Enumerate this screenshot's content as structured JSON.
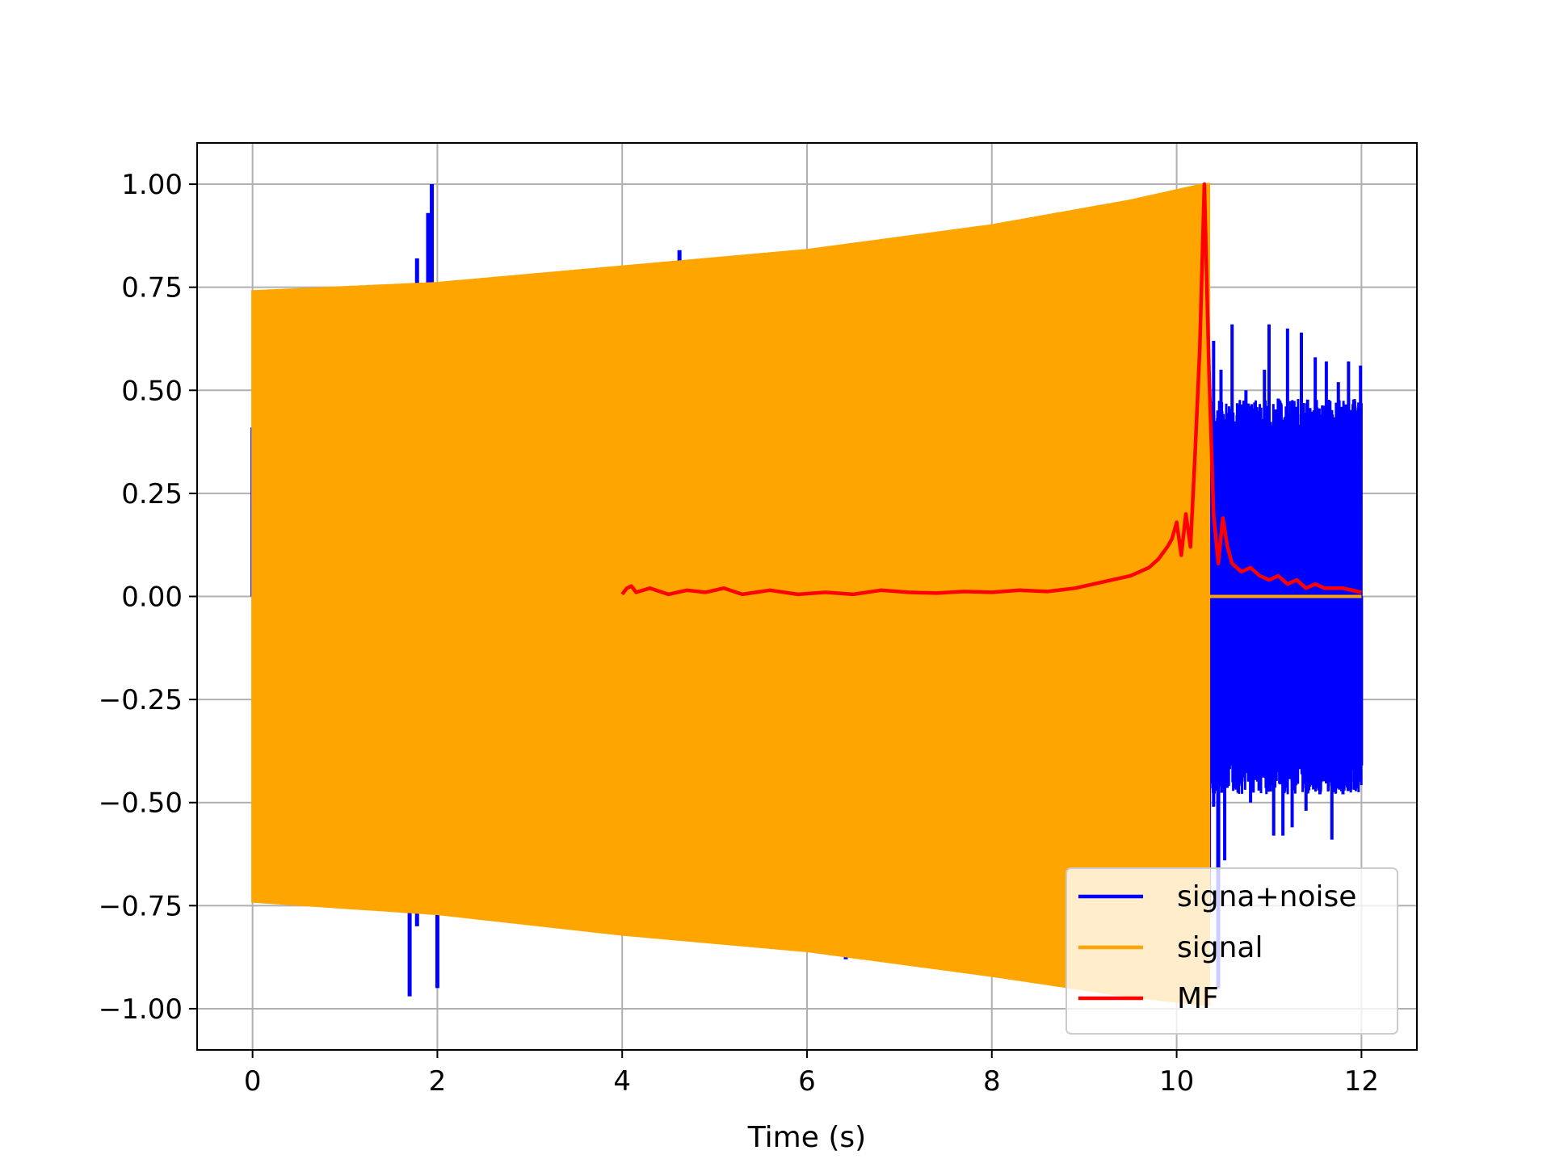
{
  "chart_data": {
    "type": "line",
    "title": "",
    "xlabel": "Time (s)",
    "ylabel": "",
    "xlim": [
      -0.6,
      12.6
    ],
    "ylim": [
      -1.1,
      1.1
    ],
    "x_ticks": [
      0,
      2,
      4,
      6,
      8,
      10,
      12
    ],
    "x_tick_labels": [
      "0",
      "2",
      "4",
      "6",
      "8",
      "10",
      "12"
    ],
    "y_ticks": [
      1.0,
      0.75,
      0.5,
      0.25,
      0.0,
      -0.25,
      -0.5,
      -0.75,
      -1.0
    ],
    "y_tick_labels": [
      "1.00",
      "0.75",
      "0.50",
      "0.25",
      "0.00",
      "−0.25",
      "−0.50",
      "−0.75",
      "−1.00"
    ],
    "grid": true,
    "legend_position": "bottom-right",
    "series": [
      {
        "name": "signa+noise",
        "color": "#0000ff",
        "style": "dense-oscillation",
        "noise_only_region": {
          "x_range": [
            10.35,
            12.0
          ],
          "spikes": [
            {
              "x": 10.4,
              "y": 0.62
            },
            {
              "x": 10.4,
              "y": -0.51
            },
            {
              "x": 10.48,
              "y": 0.55
            },
            {
              "x": 10.52,
              "y": -0.64
            },
            {
              "x": 10.6,
              "y": 0.66
            },
            {
              "x": 10.62,
              "y": -0.44
            },
            {
              "x": 10.75,
              "y": 0.5
            },
            {
              "x": 10.8,
              "y": -0.5
            },
            {
              "x": 10.95,
              "y": 0.55
            },
            {
              "x": 10.98,
              "y": -0.46
            },
            {
              "x": 11.0,
              "y": 0.66
            },
            {
              "x": 11.05,
              "y": -0.58
            },
            {
              "x": 11.1,
              "y": 0.48
            },
            {
              "x": 11.15,
              "y": -0.58
            },
            {
              "x": 11.2,
              "y": 0.65
            },
            {
              "x": 11.25,
              "y": -0.56
            },
            {
              "x": 11.35,
              "y": 0.64
            },
            {
              "x": 11.4,
              "y": -0.52
            },
            {
              "x": 11.5,
              "y": 0.58
            },
            {
              "x": 11.55,
              "y": -0.48
            },
            {
              "x": 11.62,
              "y": 0.57
            },
            {
              "x": 11.68,
              "y": -0.59
            },
            {
              "x": 11.75,
              "y": 0.52
            },
            {
              "x": 11.8,
              "y": -0.48
            },
            {
              "x": 11.86,
              "y": 0.57
            },
            {
              "x": 11.92,
              "y": -0.45
            },
            {
              "x": 11.99,
              "y": 0.56
            },
            {
              "x": 12.0,
              "y": -0.41
            }
          ],
          "envelope": [
            0.48,
            -0.44
          ]
        },
        "outliers": [
          {
            "x": 0.0,
            "y": 0.41
          },
          {
            "x": 1.78,
            "y": 0.82
          },
          {
            "x": 1.9,
            "y": 0.93
          },
          {
            "x": 1.94,
            "y": 1.0
          },
          {
            "x": 1.7,
            "y": -0.97
          },
          {
            "x": 1.78,
            "y": -0.8
          },
          {
            "x": 2.0,
            "y": -0.95
          },
          {
            "x": 4.62,
            "y": 0.84
          },
          {
            "x": 6.42,
            "y": -0.88
          },
          {
            "x": 6.55,
            "y": -0.86
          },
          {
            "x": 8.2,
            "y": -0.91
          },
          {
            "x": 10.3,
            "y": -0.64
          },
          {
            "x": 10.35,
            "y": -0.77
          },
          {
            "x": 10.45,
            "y": -0.95
          }
        ]
      },
      {
        "name": "signal",
        "color": "#ffa500",
        "style": "chirp-envelope",
        "x_range": [
          0.0,
          10.35
        ],
        "envelope_upper": [
          [
            0.0,
            0.74
          ],
          [
            2.0,
            0.76
          ],
          [
            4.0,
            0.8
          ],
          [
            6.0,
            0.84
          ],
          [
            8.0,
            0.9
          ],
          [
            9.5,
            0.96
          ],
          [
            10.3,
            1.0
          ],
          [
            10.35,
            1.0
          ]
        ],
        "envelope_lower": [
          [
            0.0,
            -0.74
          ],
          [
            2.0,
            -0.77
          ],
          [
            4.0,
            -0.82
          ],
          [
            6.0,
            -0.86
          ],
          [
            8.0,
            -0.92
          ],
          [
            9.5,
            -0.97
          ],
          [
            10.3,
            -0.99
          ],
          [
            10.35,
            -0.99
          ]
        ],
        "zero_after": [
          10.35,
          12.0
        ]
      },
      {
        "name": "MF",
        "color": "#ff0000",
        "style": "line",
        "x": [
          4.0,
          4.05,
          4.1,
          4.15,
          4.3,
          4.5,
          4.7,
          4.9,
          5.1,
          5.3,
          5.6,
          5.9,
          6.2,
          6.5,
          6.8,
          7.1,
          7.4,
          7.7,
          8.0,
          8.3,
          8.6,
          8.9,
          9.1,
          9.3,
          9.5,
          9.6,
          9.7,
          9.8,
          9.9,
          9.95,
          10.0,
          10.05,
          10.1,
          10.15,
          10.2,
          10.25,
          10.3,
          10.35,
          10.4,
          10.45,
          10.5,
          10.55,
          10.6,
          10.7,
          10.8,
          10.9,
          11.0,
          11.1,
          11.2,
          11.3,
          11.4,
          11.5,
          11.6,
          11.7,
          11.8,
          11.9,
          12.0
        ],
        "y": [
          0.005,
          0.02,
          0.025,
          0.01,
          0.02,
          0.005,
          0.015,
          0.01,
          0.02,
          0.005,
          0.015,
          0.005,
          0.01,
          0.005,
          0.015,
          0.01,
          0.008,
          0.012,
          0.01,
          0.015,
          0.012,
          0.02,
          0.03,
          0.04,
          0.05,
          0.06,
          0.07,
          0.09,
          0.12,
          0.14,
          0.18,
          0.1,
          0.2,
          0.12,
          0.35,
          0.6,
          1.0,
          0.55,
          0.2,
          0.08,
          0.19,
          0.12,
          0.08,
          0.06,
          0.07,
          0.05,
          0.04,
          0.05,
          0.03,
          0.04,
          0.02,
          0.03,
          0.02,
          0.02,
          0.02,
          0.015,
          0.01
        ]
      }
    ]
  }
}
